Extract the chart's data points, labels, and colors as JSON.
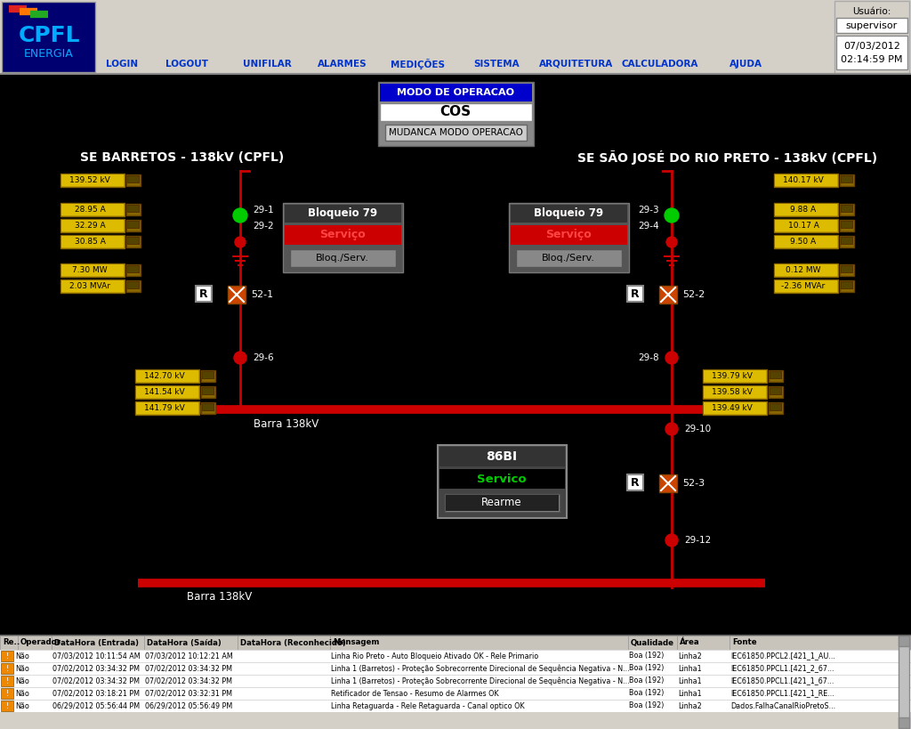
{
  "bg_color": "#000000",
  "toolbar_bg": "#d4d0c8",
  "title": "MODO DE OPERACAO",
  "mode_text": "COS",
  "mode_button": "MUDANCA MODO OPERACAO",
  "left_substation": "SE BARRETOS - 138kV (CPFL)",
  "right_substation": "SE SÃO JOSÉ DO RIO PRETO - 138kV (CPFL)",
  "usuario_label": "Usuário:",
  "usuario_value": "supervisor",
  "datetime": "07/03/2012",
  "time": "02:14:59 PM",
  "nav_items": [
    "LOGIN",
    "LOGOUT",
    "UNIFILAR",
    "ALARMES",
    "MEDIÇÕES",
    "SISTEMA",
    "ARQUITETURA",
    "CALCULADORA",
    "AJUDA"
  ],
  "nav_x": [
    137,
    210,
    300,
    385,
    470,
    558,
    648,
    742,
    838
  ],
  "left_voltages": [
    "139.52 kV",
    "28.95 A",
    "32.29 A",
    "30.85 A",
    "7.30 MW",
    "2.03 MVAr"
  ],
  "left_bus_voltages": [
    "142.70 kV",
    "141.54 kV",
    "141.79 kV"
  ],
  "right_voltages": [
    "140.17 kV",
    "9.88 A",
    "10.17 A",
    "9.50 A",
    "0.12 MW",
    "-2.36 MVAr"
  ],
  "right_bus_voltages": [
    "139.79 kV",
    "139.58 kV",
    "139.49 kV"
  ],
  "bloqueio_label": "Bloqueio 79",
  "servico_label": "Serviço",
  "bloqserv_label": "Bloq./Serv.",
  "b86_label": "86BI",
  "b86_servico": "Servico",
  "b86_rearme": "Rearme",
  "barra_label": "Barra 138kV",
  "line_color": "#cc0000",
  "log_columns": [
    "Re..",
    "Operador",
    "DataHora (Entrada)",
    "DataHora (Saída)",
    "DataHora (Reconhecido)",
    "Mensagem",
    "Qualidade",
    "Área",
    "Fonte"
  ],
  "log_rows": [
    [
      "Não",
      "",
      "07/03/2012 10:11:54 AM",
      "07/03/2012 10:12:21 AM",
      "",
      "Linha Rio Preto - Auto Bloqueio Ativado OK - Rele Primario",
      "Boa (192)",
      "Linha2",
      "IEC61850.PPCL2.[421_1_AU..."
    ],
    [
      "Não",
      "",
      "07/02/2012 03:34:32 PM",
      "07/02/2012 03:34:32 PM",
      "",
      "Linha 1 (Barretos) - Proteção Sobrecorrente Direcional de Sequência Negativa - N...",
      "Boa (192)",
      "Linha1",
      "IEC61850.PPCL1.[421_2_67..."
    ],
    [
      "Não",
      "",
      "07/02/2012 03:34:32 PM",
      "07/02/2012 03:34:32 PM",
      "",
      "Linha 1 (Barretos) - Proteção Sobrecorrente Direcional de Sequência Negativa - N...",
      "Boa (192)",
      "Linha1",
      "IEC61850.PPCL1.[421_1_67..."
    ],
    [
      "Não",
      "",
      "07/02/2012 03:18:21 PM",
      "07/02/2012 03:32:31 PM",
      "",
      "Retificador de Tensao - Resumo de Alarmes OK",
      "Boa (192)",
      "Linha1",
      "IEC61850.PPCL1.[421_1_RE..."
    ],
    [
      "Não",
      "",
      "06/29/2012 05:56:44 PM",
      "06/29/2012 05:56:49 PM",
      "",
      "Linha Retaguarda - Rele Retaguarda - Canal optico OK",
      "Boa (192)",
      "Linha2",
      "Dados.FalhaCanalRioPretoS..."
    ]
  ]
}
